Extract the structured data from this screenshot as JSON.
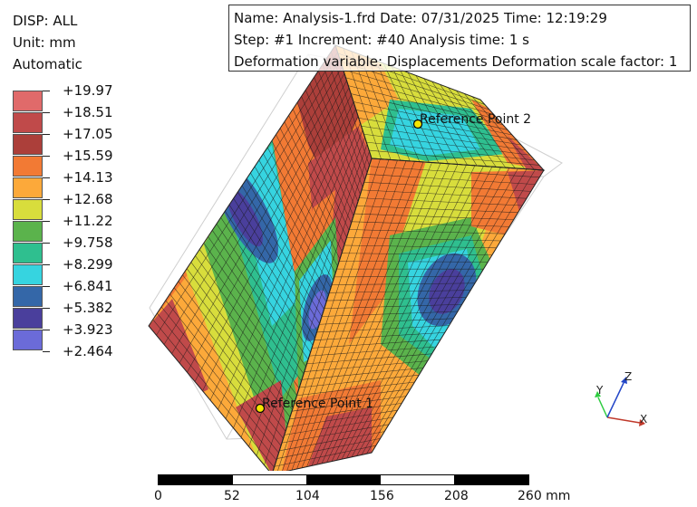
{
  "header": {
    "result_label": "DISP: ALL",
    "unit_label": "Unit: mm",
    "range_mode": "Automatic"
  },
  "legend": {
    "entries": [
      {
        "value": "+19.97",
        "color": "#e06a6a"
      },
      {
        "value": "+18.51",
        "color": "#c04a4a"
      },
      {
        "value": "+17.05",
        "color": "#ac3f3a"
      },
      {
        "value": "+15.59",
        "color": "#f27a34"
      },
      {
        "value": "+14.13",
        "color": "#fca93a"
      },
      {
        "value": "+12.68",
        "color": "#d8dd3c"
      },
      {
        "value": "+11.22",
        "color": "#5bb34c"
      },
      {
        "value": "+9.758",
        "color": "#2fbf8f"
      },
      {
        "value": "+8.299",
        "color": "#36d4e0"
      },
      {
        "value": "+6.841",
        "color": "#3467a8"
      },
      {
        "value": "+5.382",
        "color": "#4a3f9c"
      },
      {
        "value": "+3.923",
        "color": "#6b6bd8"
      },
      {
        "value": "+2.464",
        "color": "#6b6bd8"
      }
    ]
  },
  "info": {
    "line1": "Name: Analysis-1.frd   Date: 07/31/2025   Time: 12:19:29",
    "line2": "Step: #1   Increment: #40   Analysis time: 1 s",
    "line3": "Deformation variable: Displacements   Deformation scale factor: 1"
  },
  "viewport": {
    "ref_point_1": "Reference Point 1",
    "ref_point_2": "Reference Point 2",
    "point_color": "#f5e600"
  },
  "triad": {
    "x": "X",
    "y": "Y",
    "z": "Z",
    "x_color": "#c0392b",
    "y_color": "#2ecc40",
    "z_color": "#2447c8"
  },
  "scale_bar": {
    "labels": [
      "0",
      "52",
      "104",
      "156",
      "208",
      "260 mm"
    ]
  }
}
